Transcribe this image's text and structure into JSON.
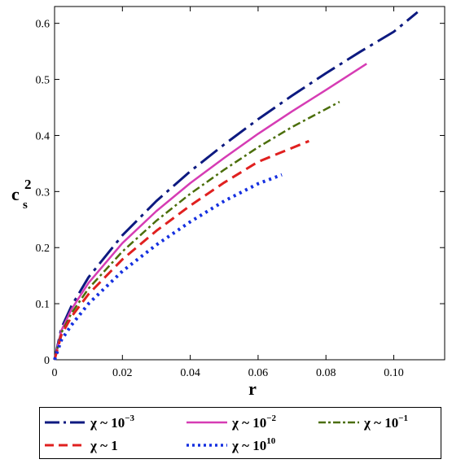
{
  "chart_data": {
    "type": "line",
    "xlabel": "r",
    "ylabel_base": "c",
    "ylabel_sub": "s",
    "ylabel_sup": "2",
    "xlim": [
      0,
      0.115
    ],
    "ylim": [
      0,
      0.63
    ],
    "xticks": [
      0,
      0.02,
      0.04,
      0.06,
      0.08,
      0.1
    ],
    "xtick_labels": [
      "0",
      "0.02",
      "0.04",
      "0.06",
      "0.08",
      "0.10"
    ],
    "yticks": [
      0,
      0.1,
      0.2,
      0.3,
      0.4,
      0.5,
      0.6
    ],
    "ytick_labels": [
      "0",
      "0.1",
      "0.2",
      "0.3",
      "0.4",
      "0.5",
      "0.6"
    ],
    "grid": false,
    "legend_position": "bottom",
    "series": [
      {
        "name": "χ ~ 10^-3",
        "name_base": "χ ~ 10",
        "name_sup": "−3",
        "color": "#0d1a80",
        "style": "longdash",
        "x": [
          0,
          0.002,
          0.005,
          0.01,
          0.02,
          0.03,
          0.04,
          0.05,
          0.06,
          0.07,
          0.08,
          0.09,
          0.1,
          0.107
        ],
        "y": [
          0,
          0.056,
          0.096,
          0.147,
          0.222,
          0.283,
          0.336,
          0.384,
          0.429,
          0.471,
          0.511,
          0.549,
          0.585,
          0.62
        ]
      },
      {
        "name": "χ ~ 10^-2",
        "name_base": "χ ~ 10",
        "name_sup": "−2",
        "color": "#d63cb4",
        "style": "solid",
        "x": [
          0,
          0.002,
          0.005,
          0.01,
          0.02,
          0.03,
          0.04,
          0.05,
          0.06,
          0.07,
          0.08,
          0.092
        ],
        "y": [
          0,
          0.052,
          0.09,
          0.137,
          0.208,
          0.265,
          0.315,
          0.36,
          0.403,
          0.443,
          0.481,
          0.528
        ]
      },
      {
        "name": "χ ~ 10^-1",
        "name_base": "χ ~ 10",
        "name_sup": "−1",
        "color": "#4b6e0a",
        "style": "dashdot",
        "x": [
          0,
          0.002,
          0.005,
          0.01,
          0.02,
          0.03,
          0.04,
          0.05,
          0.06,
          0.07,
          0.084
        ],
        "y": [
          0,
          0.048,
          0.083,
          0.127,
          0.193,
          0.248,
          0.296,
          0.339,
          0.379,
          0.415,
          0.46
        ]
      },
      {
        "name": "χ ~ 1",
        "name_base": "χ ~ 1",
        "name_sup": "",
        "color": "#e0201f",
        "style": "dash",
        "x": [
          0,
          0.002,
          0.005,
          0.01,
          0.02,
          0.03,
          0.04,
          0.05,
          0.06,
          0.075
        ],
        "y": [
          0,
          0.044,
          0.077,
          0.117,
          0.179,
          0.23,
          0.275,
          0.316,
          0.353,
          0.39
        ]
      },
      {
        "name": "χ ~ 10^10",
        "name_base": "χ ~ 10",
        "name_sup": "10",
        "color": "#1530e0",
        "style": "dot",
        "x": [
          0,
          0.002,
          0.005,
          0.01,
          0.02,
          0.03,
          0.04,
          0.05,
          0.06,
          0.067
        ],
        "y": [
          0,
          0.035,
          0.062,
          0.1,
          0.158,
          0.205,
          0.246,
          0.283,
          0.314,
          0.33
        ]
      }
    ]
  }
}
